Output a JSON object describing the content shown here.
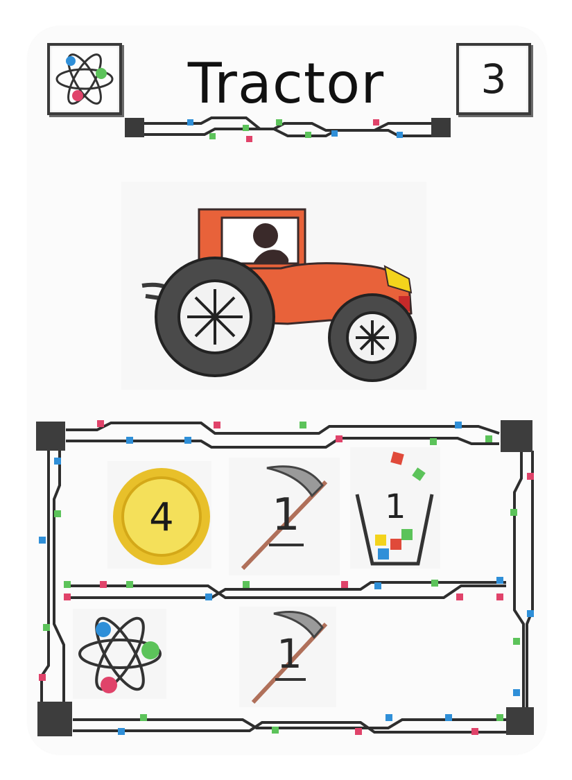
{
  "card": {
    "title": "Tractor",
    "cost": "3",
    "header_icon": "atom-icon",
    "illustration": "tractor-illustration",
    "colors": {
      "tractor_body": "#e8623a",
      "coin_fill": "#f4e05a",
      "coin_ring": "#e8c02a",
      "trace": "#2e2e2e",
      "node_red": "#e0436a",
      "node_green": "#5cc35a",
      "node_blue": "#2f8fd8"
    }
  },
  "effects": {
    "row1": {
      "coin_value": "4",
      "coin_icon": "coin-icon",
      "scythe_value": "1",
      "scythe_icon": "scythe-icon",
      "bin_value": "1",
      "bin_icon": "bin-icon"
    },
    "row2": {
      "atom_icon": "atom-icon",
      "scythe_value": "1",
      "scythe_icon": "scythe-icon"
    }
  }
}
